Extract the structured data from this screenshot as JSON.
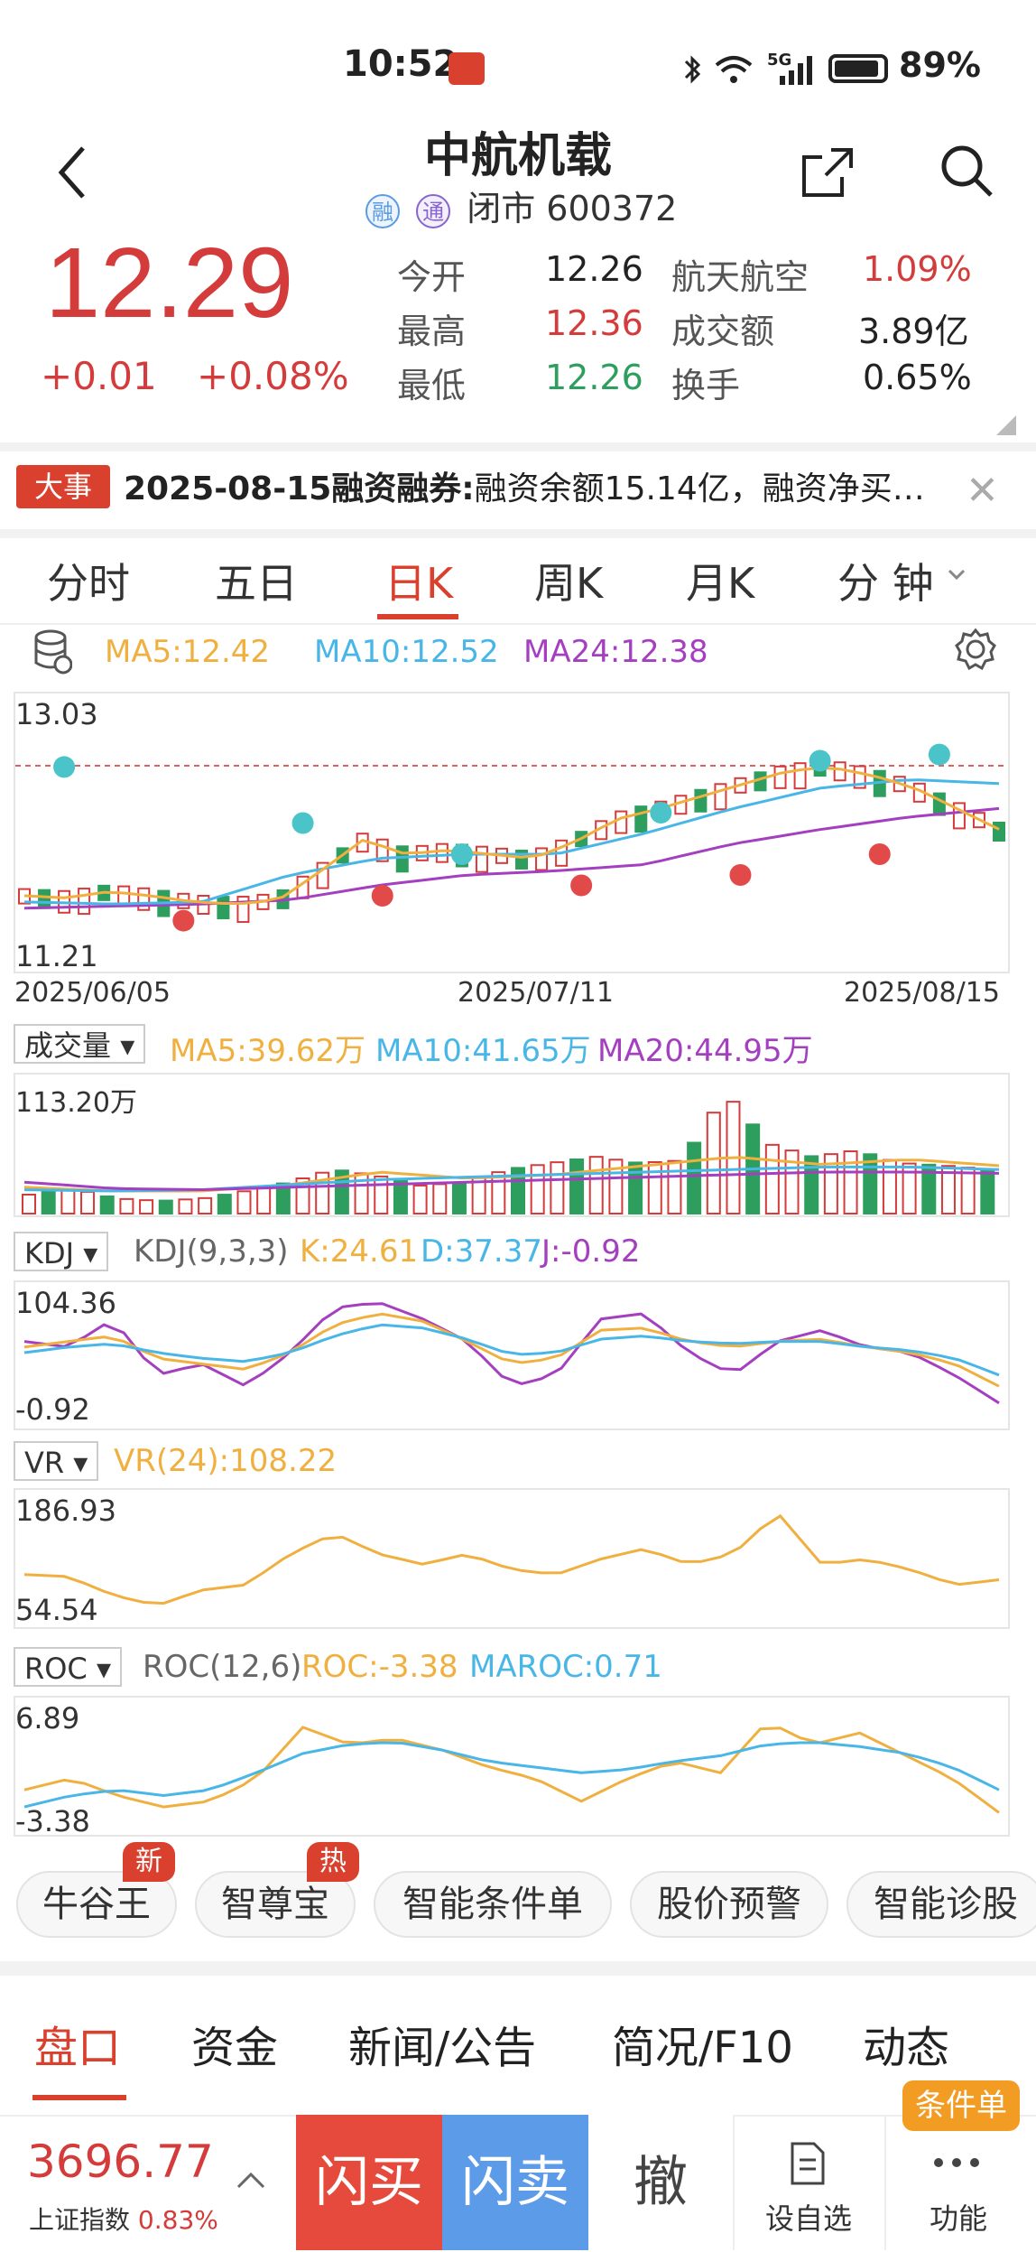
{
  "status_bar": {
    "time": "10:52",
    "network": "5G",
    "battery": "89%"
  },
  "header": {
    "title": "中航机载",
    "tag_rong": "融",
    "tag_tong": "通",
    "status_code": "闭市 600372"
  },
  "quote": {
    "price": "12.29",
    "change": "+0.01",
    "change_pct": "+0.08%",
    "open_label": "今开",
    "open": "12.26",
    "high_label": "最高",
    "high": "12.36",
    "low_label": "最低",
    "low": "12.26",
    "sector_label": "航天航空",
    "sector_pct": "1.09%",
    "amount_label": "成交额",
    "amount": "3.89亿",
    "turnover_label": "换手",
    "turnover": "0.65%"
  },
  "news": {
    "badge": "大事",
    "date_title": "2025-08-15融资融券:",
    "text": "融资余额15.14亿，融资净买…"
  },
  "tabs": [
    "分时",
    "五日",
    "日K",
    "周K",
    "月K",
    "分 钟"
  ],
  "active_tab": "日K",
  "kline": {
    "ma5": "MA5:12.42",
    "ma10": "MA10:12.52",
    "ma24": "MA24:12.38",
    "y_top": "13.03",
    "y_bottom": "11.21",
    "dates": [
      "2025/06/05",
      "2025/07/11",
      "2025/08/15"
    ]
  },
  "volume": {
    "label": "成交量",
    "ma5": "MA5:39.62万",
    "ma10": "MA10:41.65万",
    "ma20": "MA20:44.95万",
    "y_top": "113.20万"
  },
  "kdj": {
    "label": "KDJ",
    "params": "KDJ(9,3,3)",
    "k": "K:24.61",
    "d": "D:37.37",
    "j": "J:-0.92",
    "y_top": "104.36",
    "y_bottom": "-0.92"
  },
  "vr": {
    "label": "VR",
    "value": "VR(24):108.22",
    "y_top": "186.93",
    "y_bottom": "54.54"
  },
  "roc": {
    "label": "ROC",
    "params": "ROC(12,6)",
    "roc": "ROC:-3.38",
    "maroc": "MAROC:0.71",
    "y_top": "6.89",
    "y_bottom": "-3.38"
  },
  "chips": [
    {
      "label": "牛谷王",
      "badge": "新"
    },
    {
      "label": "智尊宝",
      "badge": "热"
    },
    {
      "label": "智能条件单",
      "badge": ""
    },
    {
      "label": "股价预警",
      "badge": ""
    },
    {
      "label": "智能诊股",
      "badge": ""
    }
  ],
  "bottom_tabs": [
    "盘口",
    "资金",
    "新闻/公告",
    "简况/F10",
    "动态"
  ],
  "bottom_bar": {
    "index_value": "3696.77",
    "index_name": "上证指数",
    "index_pct": "0.83%",
    "flash_buy": "闪买",
    "flash_sell": "闪卖",
    "cancel": "撤",
    "watch": "设自选",
    "func": "功能",
    "cond_badge": "条件单"
  },
  "colors": {
    "up": "#d43b3b",
    "down": "#2e9e5e",
    "ma5": "#f0b040",
    "ma10": "#48b6e6",
    "ma24": "#a43fc0",
    "buy_btn": "#e64a3c",
    "sell_btn": "#5c9be8"
  }
}
